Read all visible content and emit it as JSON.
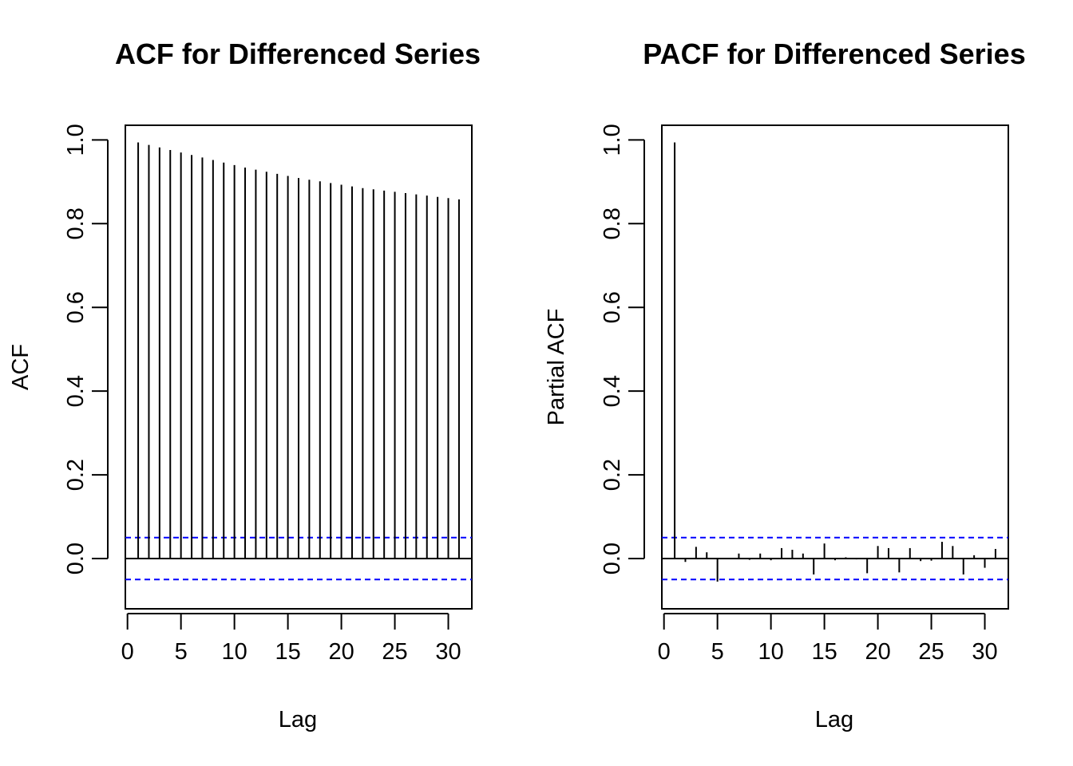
{
  "colors": {
    "axis": "#000000",
    "bar": "#000000",
    "confidence_line": "#0000ff",
    "background": "#ffffff"
  },
  "chart_data": [
    {
      "type": "bar",
      "title": "ACF for Differenced Series",
      "xlabel": "Lag",
      "ylabel": "ACF",
      "xlim": [
        -0.2,
        32.2
      ],
      "ylim": [
        -0.12,
        1.035
      ],
      "x_ticks": [
        0,
        5,
        10,
        15,
        20,
        25,
        30
      ],
      "x_tick_labels": [
        "0",
        "5",
        "10",
        "15",
        "20",
        "25",
        "30"
      ],
      "y_ticks": [
        0.0,
        0.2,
        0.4,
        0.6,
        0.8,
        1.0
      ],
      "y_tick_labels": [
        "0.0",
        "0.2",
        "0.4",
        "0.6",
        "0.8",
        "1.0"
      ],
      "confidence_band": [
        -0.05,
        0.05
      ],
      "grid": false,
      "lags": [
        1,
        2,
        3,
        4,
        5,
        6,
        7,
        8,
        9,
        10,
        11,
        12,
        13,
        14,
        15,
        16,
        17,
        18,
        19,
        20,
        21,
        22,
        23,
        24,
        25,
        26,
        27,
        28,
        29,
        30,
        31
      ],
      "values": [
        0.994,
        0.988,
        0.982,
        0.976,
        0.97,
        0.964,
        0.958,
        0.952,
        0.946,
        0.94,
        0.934,
        0.929,
        0.924,
        0.919,
        0.914,
        0.909,
        0.905,
        0.901,
        0.897,
        0.893,
        0.889,
        0.885,
        0.882,
        0.879,
        0.876,
        0.873,
        0.87,
        0.867,
        0.864,
        0.861,
        0.858
      ]
    },
    {
      "type": "bar",
      "title": "PACF for Differenced Series",
      "xlabel": "Lag",
      "ylabel": "Partial ACF",
      "xlim": [
        -0.2,
        32.2
      ],
      "ylim": [
        -0.12,
        1.035
      ],
      "x_ticks": [
        0,
        5,
        10,
        15,
        20,
        25,
        30
      ],
      "x_tick_labels": [
        "0",
        "5",
        "10",
        "15",
        "20",
        "25",
        "30"
      ],
      "y_ticks": [
        0.0,
        0.2,
        0.4,
        0.6,
        0.8,
        1.0
      ],
      "y_tick_labels": [
        "0.0",
        "0.2",
        "0.4",
        "0.6",
        "0.8",
        "1.0"
      ],
      "confidence_band": [
        -0.05,
        0.05
      ],
      "grid": false,
      "lags": [
        1,
        2,
        3,
        4,
        5,
        6,
        7,
        8,
        9,
        10,
        11,
        12,
        13,
        14,
        15,
        16,
        17,
        18,
        19,
        20,
        21,
        22,
        23,
        24,
        25,
        26,
        27,
        28,
        29,
        30,
        31
      ],
      "values": [
        0.994,
        -0.008,
        0.028,
        0.015,
        -0.055,
        0.002,
        0.012,
        -0.003,
        0.012,
        -0.004,
        0.025,
        0.021,
        0.012,
        -0.038,
        0.036,
        -0.004,
        0.003,
        -0.002,
        -0.035,
        0.03,
        0.025,
        -0.033,
        0.025,
        -0.006,
        -0.005,
        0.04,
        0.03,
        -0.038,
        0.008,
        -0.022,
        0.023
      ]
    }
  ]
}
